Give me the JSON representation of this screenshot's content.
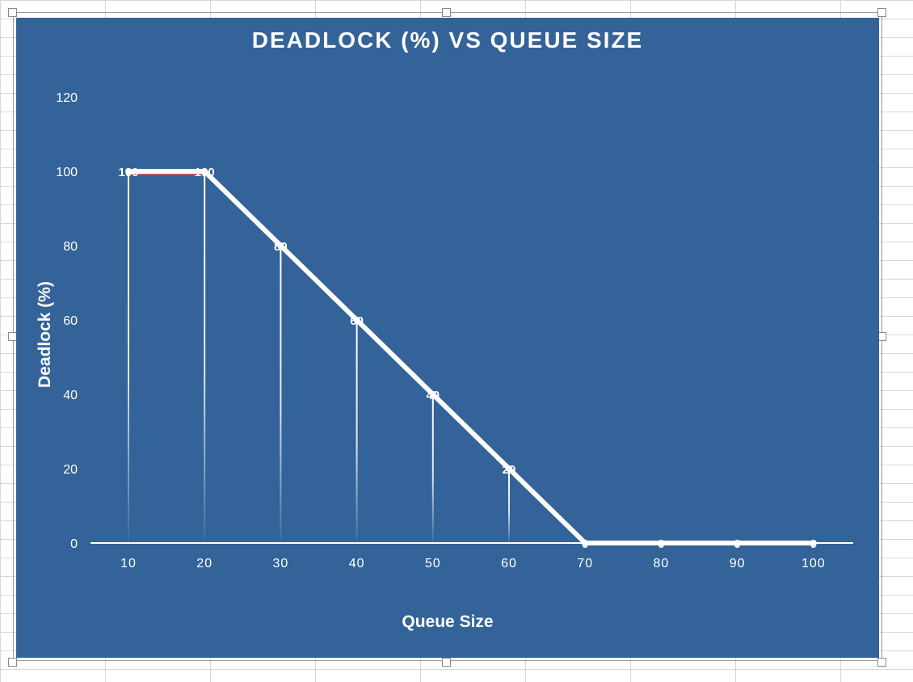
{
  "chart_data": {
    "type": "line",
    "title": "DEADLOCK (%) VS QUEUE SIZE",
    "xlabel": "Queue Size",
    "ylabel": "Deadlock (%)",
    "categories": [
      "10",
      "20",
      "30",
      "40",
      "50",
      "60",
      "70",
      "80",
      "90",
      "100"
    ],
    "series": [
      {
        "values": [
          100,
          100,
          80,
          60,
          40,
          20,
          0,
          0,
          0,
          0
        ]
      }
    ],
    "y_ticks": [
      "0",
      "20",
      "40",
      "60",
      "80",
      "100",
      "120"
    ],
    "ylim": [
      0,
      120
    ],
    "data_labels": true,
    "drop_lines": true,
    "grid": false,
    "legend": "none",
    "colors": {
      "background": "#336398",
      "line": "#ffffff",
      "highlight": "#d9536b"
    }
  }
}
